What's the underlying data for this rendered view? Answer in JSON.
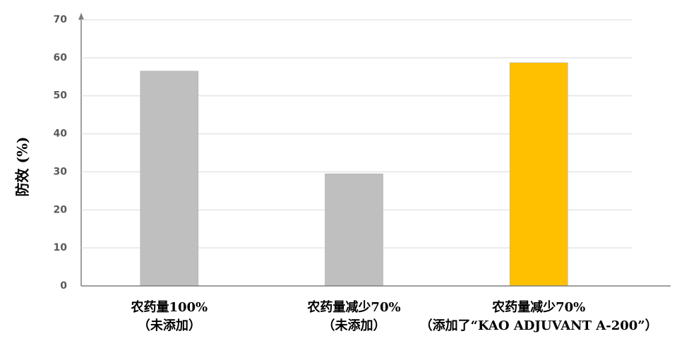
{
  "chart_data": {
    "type": "bar",
    "y_label": "防效 (%)",
    "categories": [
      "农药量100%\n（未添加）",
      "农药量减少70%\n（未添加）",
      "农药量减少70%\n（添加了“KAO ADJUVANT A-200”）"
    ],
    "values": [
      56.5,
      29.5,
      58.7
    ],
    "colors": [
      "#bfbfbf",
      "#bfbfbf",
      "#ffc000"
    ],
    "ylim": [
      0,
      70
    ],
    "yticks": [
      0,
      10,
      20,
      30,
      40,
      50,
      60,
      70
    ],
    "grid": true
  }
}
